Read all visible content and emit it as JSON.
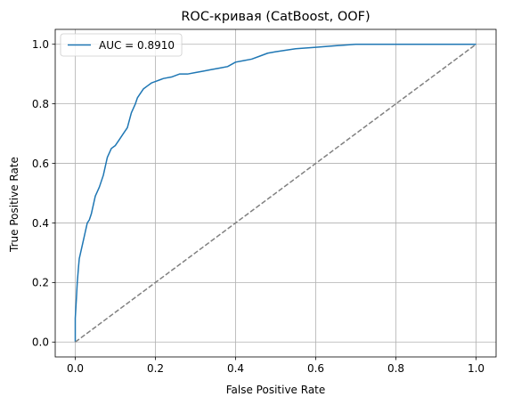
{
  "chart_data": {
    "type": "line",
    "title": "ROC-кривая (CatBoost, OOF)",
    "xlabel": "False Positive Rate",
    "ylabel": "True Positive Rate",
    "xlim": [
      -0.05,
      1.05
    ],
    "ylim": [
      -0.05,
      1.05
    ],
    "xticks": [
      0.0,
      0.2,
      0.4,
      0.6,
      0.8,
      1.0
    ],
    "yticks": [
      0.0,
      0.2,
      0.4,
      0.6,
      0.8,
      1.0
    ],
    "xtick_labels": [
      "0.0",
      "0.2",
      "0.4",
      "0.6",
      "0.8",
      "1.0"
    ],
    "ytick_labels": [
      "0.0",
      "0.2",
      "0.4",
      "0.6",
      "0.8",
      "1.0"
    ],
    "grid": true,
    "legend_position": "top-left",
    "series": [
      {
        "name": "AUC = 0.8910",
        "color": "#1f77b4",
        "style": "solid",
        "x": [
          0.0,
          0.0,
          0.003,
          0.005,
          0.008,
          0.01,
          0.015,
          0.02,
          0.025,
          0.03,
          0.035,
          0.04,
          0.05,
          0.06,
          0.07,
          0.08,
          0.09,
          0.1,
          0.11,
          0.12,
          0.13,
          0.14,
          0.15,
          0.155,
          0.16,
          0.17,
          0.18,
          0.19,
          0.2,
          0.21,
          0.22,
          0.24,
          0.26,
          0.28,
          0.3,
          0.32,
          0.34,
          0.36,
          0.38,
          0.4,
          0.42,
          0.44,
          0.46,
          0.48,
          0.5,
          0.55,
          0.6,
          0.65,
          0.7,
          0.8,
          0.9,
          1.0
        ],
        "y": [
          0.0,
          0.08,
          0.15,
          0.2,
          0.25,
          0.28,
          0.31,
          0.34,
          0.37,
          0.4,
          0.41,
          0.43,
          0.49,
          0.52,
          0.56,
          0.62,
          0.65,
          0.66,
          0.68,
          0.7,
          0.72,
          0.77,
          0.8,
          0.82,
          0.83,
          0.85,
          0.86,
          0.87,
          0.875,
          0.88,
          0.885,
          0.89,
          0.9,
          0.9,
          0.905,
          0.91,
          0.915,
          0.92,
          0.925,
          0.94,
          0.945,
          0.95,
          0.96,
          0.97,
          0.975,
          0.985,
          0.99,
          0.995,
          1.0,
          1.0,
          1.0,
          1.0
        ]
      },
      {
        "name": "",
        "color": "#808080",
        "style": "dashed",
        "x": [
          0.0,
          1.0
        ],
        "y": [
          0.0,
          1.0
        ]
      }
    ]
  }
}
